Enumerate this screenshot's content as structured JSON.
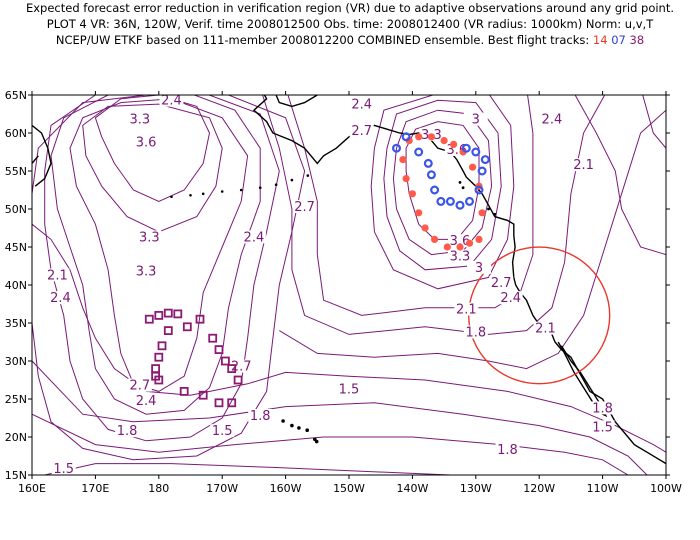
{
  "header": {
    "line1": "Expected forecast error reduction in verification region (VR) due to adaptive observations around any grid point.",
    "line2": "PLOT 4 VR: 36N, 120W, Verif. time 2008012500 Obs. time: 2008012400 (VR radius: 1000km) Norm: u,v,T",
    "line3_prefix": "NCEP/UW ETKF based on 111-member 2008012200 COMBINED ensemble.  Best flight tracks: ",
    "track_14": "14",
    "track_07": "07",
    "track_38": "38"
  },
  "map": {
    "lon_range": [
      160,
      260
    ],
    "lat_range": [
      15,
      65
    ],
    "lon_ticks": [
      "160E",
      "170E",
      "180",
      "170W",
      "160W",
      "150W",
      "140W",
      "130W",
      "120W",
      "110W",
      "100W"
    ],
    "lat_ticks": [
      "15N",
      "20N",
      "25N",
      "30N",
      "35N",
      "40N",
      "45N",
      "50N",
      "55N",
      "60N",
      "65N"
    ],
    "contour_color": "#7a1a78",
    "coast_color": "#000000",
    "verification_circle": {
      "center_lon": 240,
      "center_lat": 36,
      "radius_km": 1000,
      "color": "#e8382c"
    },
    "contour_labels": [
      {
        "text": "2.4",
        "lon": 182,
        "lat": 64
      },
      {
        "text": "3.3",
        "lon": 177,
        "lat": 61.5
      },
      {
        "text": "3.6",
        "lon": 178,
        "lat": 58.5
      },
      {
        "text": "3.3",
        "lon": 178.5,
        "lat": 46
      },
      {
        "text": "3.3",
        "lon": 178,
        "lat": 41.5
      },
      {
        "text": "2.1",
        "lon": 164,
        "lat": 41
      },
      {
        "text": "2.4",
        "lon": 164.5,
        "lat": 38
      },
      {
        "text": "2.7",
        "lon": 177,
        "lat": 26.5
      },
      {
        "text": "2.4",
        "lon": 178,
        "lat": 24.5
      },
      {
        "text": "1.8",
        "lon": 175,
        "lat": 20.5
      },
      {
        "text": "1.5",
        "lon": 165,
        "lat": 15.5
      },
      {
        "text": "1.5",
        "lon": 190,
        "lat": 20.5
      },
      {
        "text": "2.7",
        "lon": 193,
        "lat": 29
      },
      {
        "text": "1.8",
        "lon": 196,
        "lat": 22.5
      },
      {
        "text": "2.7",
        "lon": 203,
        "lat": 50
      },
      {
        "text": "2.4",
        "lon": 195,
        "lat": 46
      },
      {
        "text": "2.4",
        "lon": 212,
        "lat": 63.5
      },
      {
        "text": "2.7",
        "lon": 212,
        "lat": 60
      },
      {
        "text": "3",
        "lon": 230,
        "lat": 61.5
      },
      {
        "text": "3.3",
        "lon": 223,
        "lat": 59.5
      },
      {
        "text": "3.6",
        "lon": 227,
        "lat": 57.5
      },
      {
        "text": "3.6",
        "lon": 227.5,
        "lat": 45.5
      },
      {
        "text": "3.3",
        "lon": 227.5,
        "lat": 43.5
      },
      {
        "text": "3",
        "lon": 230.5,
        "lat": 42
      },
      {
        "text": "2.7",
        "lon": 234,
        "lat": 40
      },
      {
        "text": "2.4",
        "lon": 235.5,
        "lat": 38
      },
      {
        "text": "2.1",
        "lon": 228.5,
        "lat": 36.5
      },
      {
        "text": "1.8",
        "lon": 230,
        "lat": 33.5
      },
      {
        "text": "1.5",
        "lon": 210,
        "lat": 26
      },
      {
        "text": "2.4",
        "lon": 242,
        "lat": 61.5
      },
      {
        "text": "2.1",
        "lon": 247,
        "lat": 55.5
      },
      {
        "text": "2.1",
        "lon": 241,
        "lat": 34
      },
      {
        "text": "1.8",
        "lon": 250,
        "lat": 23.5
      },
      {
        "text": "1.5",
        "lon": 250,
        "lat": 21
      },
      {
        "text": "1.8",
        "lon": 235,
        "lat": 18
      }
    ],
    "tracks": [
      {
        "id": "14",
        "color": "#ff5a4a",
        "marker": "dot",
        "points": [
          [
            219.5,
            59
          ],
          [
            218.5,
            56.5
          ],
          [
            219,
            54
          ],
          [
            220,
            52
          ],
          [
            221,
            49.5
          ],
          [
            222,
            47.5
          ],
          [
            223.5,
            46
          ],
          [
            225.5,
            45
          ],
          [
            227.5,
            45
          ],
          [
            229,
            45.5
          ],
          [
            230.5,
            46
          ],
          [
            231,
            49.5
          ],
          [
            230.5,
            53
          ],
          [
            229.5,
            55.5
          ],
          [
            228,
            57.5
          ],
          [
            226.5,
            58.5
          ],
          [
            225,
            59
          ],
          [
            223,
            59.5
          ],
          [
            221,
            59.5
          ]
        ]
      },
      {
        "id": "07",
        "color": "#3a56e8",
        "marker": "ring",
        "points": [
          [
            217.5,
            58
          ],
          [
            219,
            59.5
          ],
          [
            221,
            57.5
          ],
          [
            222.5,
            56
          ],
          [
            223,
            54.5
          ],
          [
            223.5,
            52.5
          ],
          [
            224.5,
            51
          ],
          [
            226,
            51
          ],
          [
            227.5,
            50.5
          ],
          [
            229,
            51
          ],
          [
            230.5,
            52.5
          ],
          [
            231,
            55
          ],
          [
            231.5,
            56.5
          ],
          [
            230,
            57.5
          ],
          [
            228.5,
            58
          ]
        ]
      },
      {
        "id": "38",
        "color": "#8c1a72",
        "marker": "square",
        "points": [
          [
            178.5,
            35.5
          ],
          [
            180,
            36
          ],
          [
            181.5,
            36.3
          ],
          [
            183,
            36.2
          ],
          [
            184.5,
            34.5
          ],
          [
            186.5,
            35.5
          ],
          [
            188.5,
            33
          ],
          [
            189.5,
            31.5
          ],
          [
            190.5,
            30
          ],
          [
            191.5,
            29
          ],
          [
            192.5,
            27.5
          ],
          [
            181.5,
            34
          ],
          [
            180.5,
            32
          ],
          [
            180,
            30.5
          ],
          [
            179.5,
            29
          ],
          [
            179.5,
            28
          ],
          [
            180,
            27.5
          ],
          [
            184,
            26
          ],
          [
            187,
            25.5
          ],
          [
            189.5,
            24.5
          ],
          [
            191.5,
            24.5
          ]
        ]
      }
    ]
  }
}
